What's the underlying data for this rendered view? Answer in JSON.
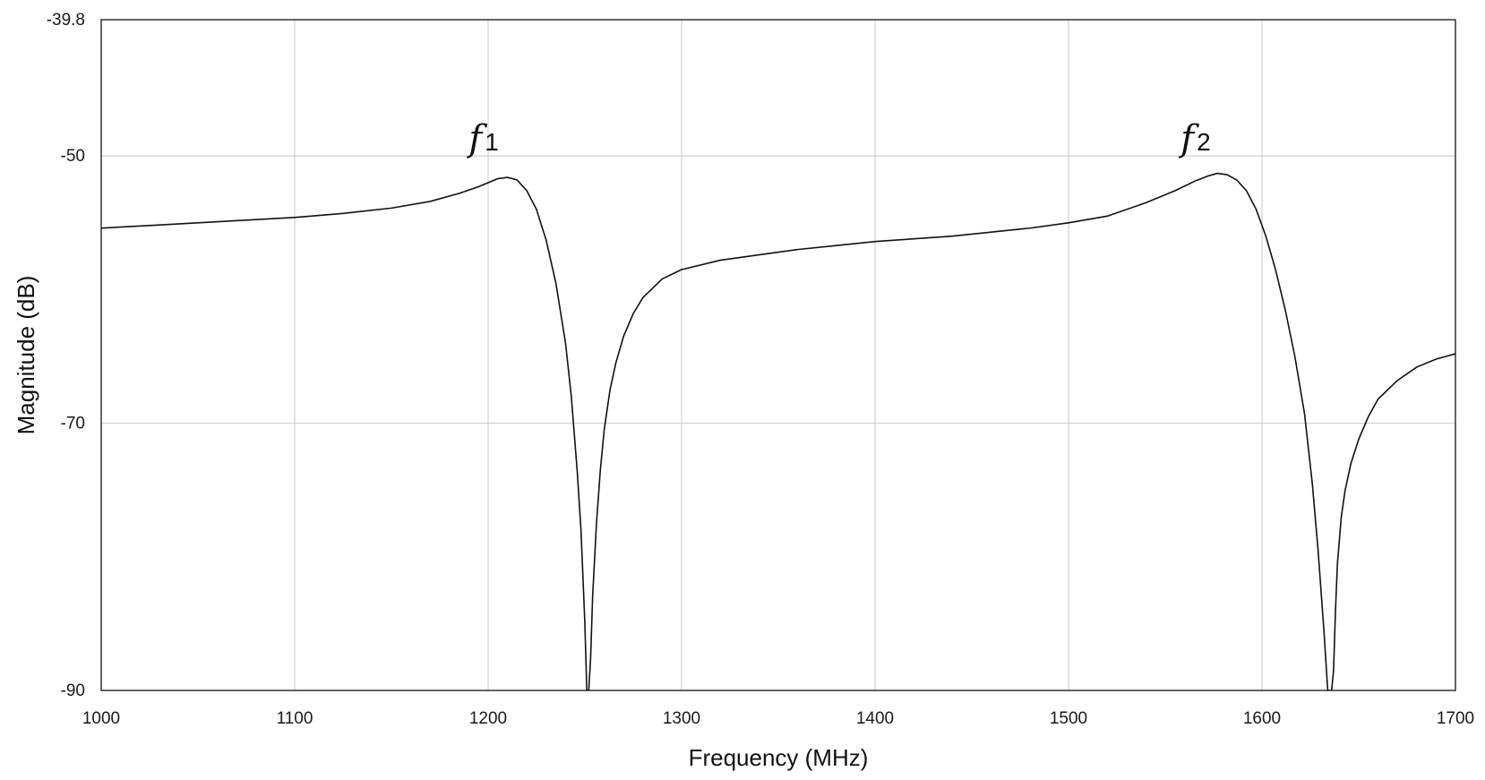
{
  "chart_data": {
    "type": "line",
    "xlabel": "Frequency (MHz)",
    "ylabel": "Magnitude (dB)",
    "xlim": [
      1000,
      1700
    ],
    "ylim": [
      -90,
      -39.8
    ],
    "x_ticks": [
      1000,
      1100,
      1200,
      1300,
      1400,
      1500,
      1600,
      1700
    ],
    "y_ticks": [
      -39.8,
      -50,
      -70,
      -90
    ],
    "grid": true,
    "legend": "none",
    "colors": {
      "line": "#111111",
      "grid": "#c8c8c8",
      "axes": "#000000"
    },
    "annotations": [
      {
        "italic": "f",
        "sub": "1",
        "x": 1190,
        "y": -49.6
      },
      {
        "italic": "f",
        "sub": "2",
        "x": 1558,
        "y": -49.6
      }
    ],
    "series": [
      {
        "x": [
          1000,
          1025,
          1050,
          1075,
          1100,
          1125,
          1150,
          1170,
          1185,
          1195,
          1200,
          1205,
          1210,
          1215,
          1220,
          1225,
          1230,
          1235,
          1240,
          1243,
          1246,
          1248,
          1250,
          1251,
          1252,
          1253,
          1254,
          1256,
          1258,
          1260,
          1263,
          1266,
          1270,
          1275,
          1280,
          1290,
          1300,
          1320,
          1340,
          1360,
          1380,
          1400,
          1420,
          1440,
          1460,
          1480,
          1500,
          1520,
          1540,
          1555,
          1565,
          1572,
          1577,
          1582,
          1587,
          1592,
          1597,
          1602,
          1607,
          1612,
          1617,
          1622,
          1626,
          1629,
          1632,
          1634,
          1635,
          1636,
          1637,
          1638,
          1639,
          1641,
          1643,
          1646,
          1650,
          1655,
          1660,
          1670,
          1680,
          1690,
          1700
        ],
        "y": [
          -55.4,
          -55.2,
          -55.0,
          -54.8,
          -54.6,
          -54.3,
          -53.9,
          -53.4,
          -52.8,
          -52.3,
          -52.0,
          -51.7,
          -51.6,
          -51.8,
          -52.6,
          -54.0,
          -56.3,
          -59.5,
          -64.0,
          -68.0,
          -73.5,
          -78.0,
          -85.0,
          -90.0,
          -90.0,
          -87.5,
          -83.0,
          -77.5,
          -73.5,
          -70.5,
          -67.5,
          -65.5,
          -63.5,
          -61.8,
          -60.6,
          -59.2,
          -58.5,
          -57.8,
          -57.4,
          -57.0,
          -56.7,
          -56.4,
          -56.2,
          -56.0,
          -55.7,
          -55.4,
          -55.0,
          -54.5,
          -53.5,
          -52.6,
          -51.9,
          -51.5,
          -51.3,
          -51.4,
          -51.8,
          -52.6,
          -54.0,
          -56.0,
          -58.5,
          -61.5,
          -65.0,
          -69.3,
          -74.5,
          -79.5,
          -85.5,
          -90.0,
          -90.0,
          -90.0,
          -88.5,
          -84.0,
          -80.5,
          -77.0,
          -75.0,
          -73.0,
          -71.2,
          -69.5,
          -68.2,
          -66.8,
          -65.8,
          -65.2,
          -64.8
        ]
      }
    ]
  }
}
